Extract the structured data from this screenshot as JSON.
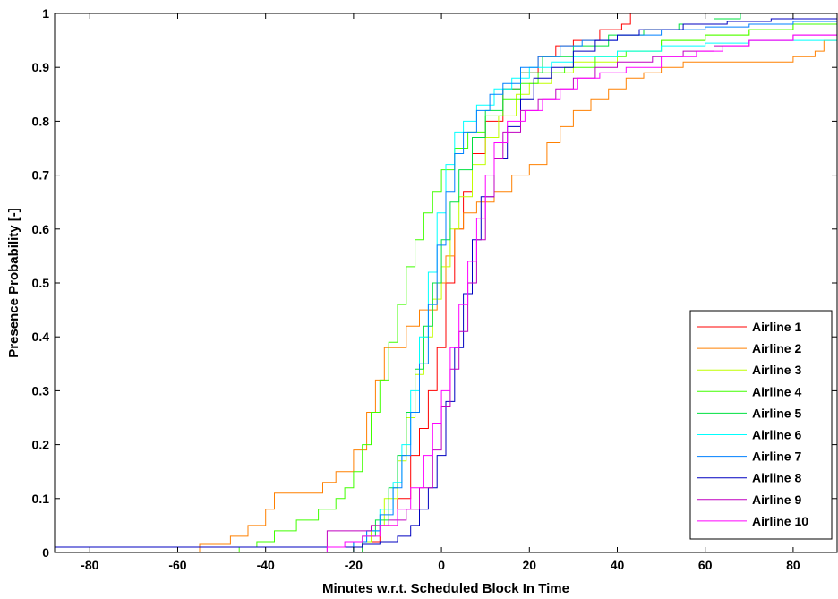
{
  "chart_data": {
    "type": "line",
    "title": "",
    "xlabel": "Minutes w.r.t. Scheduled Block In Time",
    "ylabel": "Presence Probability [-]",
    "xlim": [
      -88,
      90
    ],
    "ylim": [
      0,
      1
    ],
    "x_ticks": [
      -80,
      -60,
      -40,
      -20,
      0,
      20,
      40,
      60,
      80
    ],
    "y_ticks": [
      0,
      0.1,
      0.2,
      0.3,
      0.4,
      0.5,
      0.6,
      0.7,
      0.8,
      0.9,
      1
    ],
    "x_tick_labels": [
      "-80",
      "-60",
      "-40",
      "-20",
      "0",
      "20",
      "40",
      "60",
      "80"
    ],
    "y_tick_labels": [
      "0",
      "0.1",
      "0.2",
      "0.3",
      "0.4",
      "0.5",
      "0.6",
      "0.7",
      "0.8",
      "0.9",
      "1"
    ],
    "grid": false,
    "legend_position": "bottom-right",
    "series": [
      {
        "name": "Airline 1",
        "color": "#ff0000",
        "points": [
          [
            -88,
            0
          ],
          [
            -22,
            0
          ],
          [
            -18,
            0.02
          ],
          [
            -14,
            0.05
          ],
          [
            -10,
            0.1
          ],
          [
            -7,
            0.18
          ],
          [
            -5,
            0.23
          ],
          [
            -3,
            0.3
          ],
          [
            -1,
            0.38
          ],
          [
            1,
            0.5
          ],
          [
            3,
            0.6
          ],
          [
            5,
            0.67
          ],
          [
            7,
            0.74
          ],
          [
            10,
            0.8
          ],
          [
            14,
            0.86
          ],
          [
            18,
            0.89
          ],
          [
            22,
            0.92
          ],
          [
            26,
            0.94
          ],
          [
            30,
            0.95
          ],
          [
            36,
            0.97
          ],
          [
            41,
            0.98
          ],
          [
            43,
            1.0
          ],
          [
            90,
            1.0
          ]
        ]
      },
      {
        "name": "Airline 2",
        "color": "#ff8000",
        "points": [
          [
            -88,
            0
          ],
          [
            -56,
            0
          ],
          [
            -55,
            0.015
          ],
          [
            -48,
            0.03
          ],
          [
            -44,
            0.05
          ],
          [
            -40,
            0.08
          ],
          [
            -38,
            0.11
          ],
          [
            -30,
            0.11
          ],
          [
            -27,
            0.13
          ],
          [
            -24,
            0.15
          ],
          [
            -20,
            0.19
          ],
          [
            -17,
            0.26
          ],
          [
            -15,
            0.32
          ],
          [
            -13,
            0.38
          ],
          [
            -9,
            0.38
          ],
          [
            -8,
            0.42
          ],
          [
            -5,
            0.45
          ],
          [
            -3,
            0.45
          ],
          [
            -1,
            0.5
          ],
          [
            1,
            0.55
          ],
          [
            3,
            0.6
          ],
          [
            5,
            0.63
          ],
          [
            8,
            0.65
          ],
          [
            12,
            0.67
          ],
          [
            16,
            0.7
          ],
          [
            20,
            0.72
          ],
          [
            24,
            0.76
          ],
          [
            27,
            0.79
          ],
          [
            30,
            0.82
          ],
          [
            34,
            0.84
          ],
          [
            38,
            0.86
          ],
          [
            42,
            0.88
          ],
          [
            46,
            0.89
          ],
          [
            50,
            0.9
          ],
          [
            55,
            0.91
          ],
          [
            60,
            0.91
          ],
          [
            70,
            0.91
          ],
          [
            80,
            0.92
          ],
          [
            85,
            0.93
          ],
          [
            87,
            0.95
          ],
          [
            90,
            0.96
          ]
        ]
      },
      {
        "name": "Airline 3",
        "color": "#c0ff00",
        "points": [
          [
            -88,
            0
          ],
          [
            -25,
            0
          ],
          [
            -20,
            0.02
          ],
          [
            -16,
            0.05
          ],
          [
            -13,
            0.1
          ],
          [
            -10,
            0.17
          ],
          [
            -8,
            0.25
          ],
          [
            -6,
            0.33
          ],
          [
            -4,
            0.4
          ],
          [
            -2,
            0.47
          ],
          [
            0,
            0.53
          ],
          [
            2,
            0.6
          ],
          [
            4,
            0.66
          ],
          [
            7,
            0.72
          ],
          [
            10,
            0.77
          ],
          [
            13,
            0.81
          ],
          [
            17,
            0.85
          ],
          [
            20,
            0.87
          ],
          [
            25,
            0.89
          ],
          [
            30,
            0.91
          ],
          [
            40,
            0.93
          ],
          [
            50,
            0.95
          ],
          [
            60,
            0.96
          ],
          [
            70,
            0.97
          ],
          [
            80,
            0.98
          ],
          [
            90,
            0.985
          ]
        ]
      },
      {
        "name": "Airline 4",
        "color": "#40ff00",
        "points": [
          [
            -88,
            0
          ],
          [
            -50,
            0
          ],
          [
            -46,
            0.01
          ],
          [
            -42,
            0.02
          ],
          [
            -38,
            0.04
          ],
          [
            -33,
            0.06
          ],
          [
            -28,
            0.08
          ],
          [
            -24,
            0.1
          ],
          [
            -22,
            0.12
          ],
          [
            -20,
            0.15
          ],
          [
            -18,
            0.2
          ],
          [
            -16,
            0.26
          ],
          [
            -14,
            0.32
          ],
          [
            -12,
            0.39
          ],
          [
            -10,
            0.46
          ],
          [
            -8,
            0.53
          ],
          [
            -6,
            0.58
          ],
          [
            -4,
            0.63
          ],
          [
            -2,
            0.67
          ],
          [
            0,
            0.71
          ],
          [
            3,
            0.75
          ],
          [
            6,
            0.78
          ],
          [
            10,
            0.81
          ],
          [
            14,
            0.84
          ],
          [
            18,
            0.87
          ],
          [
            22,
            0.89
          ],
          [
            28,
            0.9
          ],
          [
            35,
            0.92
          ],
          [
            42,
            0.93
          ],
          [
            50,
            0.95
          ],
          [
            60,
            0.96
          ],
          [
            70,
            0.97
          ],
          [
            80,
            0.98
          ],
          [
            90,
            0.99
          ]
        ]
      },
      {
        "name": "Airline 5",
        "color": "#00e040",
        "points": [
          [
            -88,
            0
          ],
          [
            -22,
            0
          ],
          [
            -18,
            0.03
          ],
          [
            -15,
            0.06
          ],
          [
            -12,
            0.12
          ],
          [
            -10,
            0.18
          ],
          [
            -8,
            0.26
          ],
          [
            -6,
            0.34
          ],
          [
            -4,
            0.42
          ],
          [
            -2,
            0.5
          ],
          [
            0,
            0.58
          ],
          [
            2,
            0.65
          ],
          [
            4,
            0.71
          ],
          [
            7,
            0.77
          ],
          [
            10,
            0.82
          ],
          [
            14,
            0.86
          ],
          [
            18,
            0.89
          ],
          [
            23,
            0.92
          ],
          [
            30,
            0.94
          ],
          [
            38,
            0.96
          ],
          [
            46,
            0.97
          ],
          [
            54,
            0.98
          ],
          [
            62,
            0.99
          ],
          [
            68,
            1.0
          ],
          [
            90,
            1.0
          ]
        ]
      },
      {
        "name": "Airline 6",
        "color": "#00ffff",
        "points": [
          [
            -88,
            0
          ],
          [
            -24,
            0
          ],
          [
            -20,
            0.02
          ],
          [
            -17,
            0.04
          ],
          [
            -14,
            0.08
          ],
          [
            -11,
            0.13
          ],
          [
            -9,
            0.2
          ],
          [
            -7,
            0.3
          ],
          [
            -5,
            0.4
          ],
          [
            -3,
            0.52
          ],
          [
            -1,
            0.63
          ],
          [
            1,
            0.72
          ],
          [
            3,
            0.78
          ],
          [
            5,
            0.8
          ],
          [
            8,
            0.83
          ],
          [
            12,
            0.86
          ],
          [
            16,
            0.88
          ],
          [
            20,
            0.9
          ],
          [
            25,
            0.91
          ],
          [
            30,
            0.92
          ],
          [
            40,
            0.93
          ],
          [
            50,
            0.94
          ],
          [
            60,
            0.945
          ],
          [
            70,
            0.95
          ],
          [
            80,
            0.95
          ],
          [
            90,
            0.955
          ]
        ]
      },
      {
        "name": "Airline 7",
        "color": "#0080ff",
        "points": [
          [
            -88,
            0
          ],
          [
            -24,
            0
          ],
          [
            -20,
            0.02
          ],
          [
            -17,
            0.04
          ],
          [
            -14,
            0.07
          ],
          [
            -11,
            0.12
          ],
          [
            -9,
            0.18
          ],
          [
            -7,
            0.26
          ],
          [
            -5,
            0.35
          ],
          [
            -3,
            0.46
          ],
          [
            -1,
            0.57
          ],
          [
            1,
            0.67
          ],
          [
            3,
            0.74
          ],
          [
            5,
            0.78
          ],
          [
            8,
            0.82
          ],
          [
            11,
            0.85
          ],
          [
            14,
            0.87
          ],
          [
            18,
            0.9
          ],
          [
            22,
            0.92
          ],
          [
            27,
            0.94
          ],
          [
            32,
            0.95
          ],
          [
            40,
            0.96
          ],
          [
            50,
            0.97
          ],
          [
            60,
            0.975
          ],
          [
            70,
            0.98
          ],
          [
            80,
            0.985
          ],
          [
            90,
            0.99
          ]
        ]
      },
      {
        "name": "Airline 8",
        "color": "#0000c0",
        "points": [
          [
            -88,
            0.01
          ],
          [
            -22,
            0.01
          ],
          [
            -18,
            0.015
          ],
          [
            -14,
            0.02
          ],
          [
            -10,
            0.03
          ],
          [
            -7,
            0.05
          ],
          [
            -5,
            0.08
          ],
          [
            -3,
            0.12
          ],
          [
            -1,
            0.18
          ],
          [
            1,
            0.28
          ],
          [
            3,
            0.38
          ],
          [
            5,
            0.48
          ],
          [
            7,
            0.58
          ],
          [
            9,
            0.66
          ],
          [
            12,
            0.73
          ],
          [
            15,
            0.79
          ],
          [
            18,
            0.84
          ],
          [
            21,
            0.88
          ],
          [
            25,
            0.9
          ],
          [
            30,
            0.93
          ],
          [
            35,
            0.95
          ],
          [
            40,
            0.96
          ],
          [
            45,
            0.97
          ],
          [
            55,
            0.98
          ],
          [
            65,
            0.985
          ],
          [
            75,
            0.99
          ],
          [
            90,
            0.99
          ]
        ]
      },
      {
        "name": "Airline 9",
        "color": "#c000c0",
        "points": [
          [
            -88,
            0
          ],
          [
            -28,
            0
          ],
          [
            -26,
            0.04
          ],
          [
            -20,
            0.04
          ],
          [
            -16,
            0.05
          ],
          [
            -12,
            0.06
          ],
          [
            -8,
            0.08
          ],
          [
            -5,
            0.12
          ],
          [
            -2,
            0.19
          ],
          [
            0,
            0.27
          ],
          [
            2,
            0.34
          ],
          [
            4,
            0.41
          ],
          [
            6,
            0.5
          ],
          [
            8,
            0.58
          ],
          [
            10,
            0.66
          ],
          [
            12,
            0.73
          ],
          [
            14,
            0.78
          ],
          [
            18,
            0.82
          ],
          [
            22,
            0.84
          ],
          [
            26,
            0.86
          ],
          [
            30,
            0.88
          ],
          [
            35,
            0.9
          ],
          [
            40,
            0.91
          ],
          [
            48,
            0.92
          ],
          [
            55,
            0.93
          ],
          [
            62,
            0.94
          ],
          [
            70,
            0.95
          ],
          [
            80,
            0.96
          ],
          [
            90,
            0.97
          ]
        ]
      },
      {
        "name": "Airline 10",
        "color": "#ff00ff",
        "points": [
          [
            -88,
            0
          ],
          [
            -30,
            0
          ],
          [
            -26,
            0.01
          ],
          [
            -22,
            0.02
          ],
          [
            -18,
            0.03
          ],
          [
            -14,
            0.05
          ],
          [
            -10,
            0.08
          ],
          [
            -7,
            0.12
          ],
          [
            -4,
            0.18
          ],
          [
            -2,
            0.24
          ],
          [
            0,
            0.3
          ],
          [
            2,
            0.38
          ],
          [
            4,
            0.46
          ],
          [
            6,
            0.54
          ],
          [
            8,
            0.62
          ],
          [
            10,
            0.7
          ],
          [
            12,
            0.76
          ],
          [
            15,
            0.8
          ],
          [
            19,
            0.82
          ],
          [
            23,
            0.84
          ],
          [
            27,
            0.86
          ],
          [
            31,
            0.88
          ],
          [
            36,
            0.89
          ],
          [
            42,
            0.9
          ],
          [
            50,
            0.92
          ],
          [
            58,
            0.93
          ],
          [
            64,
            0.94
          ],
          [
            70,
            0.95
          ],
          [
            80,
            0.96
          ],
          [
            90,
            0.97
          ]
        ]
      }
    ]
  }
}
